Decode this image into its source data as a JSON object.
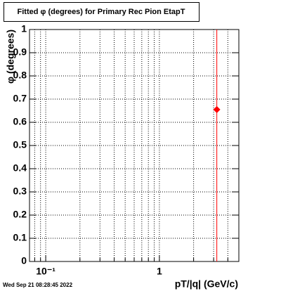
{
  "chart_data": {
    "type": "scatter",
    "title": "Fitted φ (degrees) for Primary Rec Pion EtapT",
    "x_label": "pT/|q| (GeV/c)",
    "y_label": "φ (degrees)",
    "footer": "Wed Sep 21 08:28:45 2022",
    "x": [
      3.2
    ],
    "values": [
      0.655
    ],
    "errors": [
      0.7
    ],
    "color": "#ff0000",
    "xlog": true,
    "xlim": [
      0.072,
      5
    ],
    "xticks": [
      {
        "value": 0.1,
        "label": "10⁻¹"
      },
      1
    ],
    "xminorticks": [
      0.08,
      0.09,
      0.2,
      0.3,
      0.4,
      0.5,
      0.6,
      0.7,
      0.8,
      0.9,
      2,
      3,
      4,
      5
    ],
    "ylim": [
      0,
      1
    ],
    "yticks": [
      0,
      0.1,
      0.2,
      0.3,
      0.4,
      0.5,
      0.6,
      0.7,
      0.8,
      0.9,
      1
    ],
    "grid": true
  }
}
